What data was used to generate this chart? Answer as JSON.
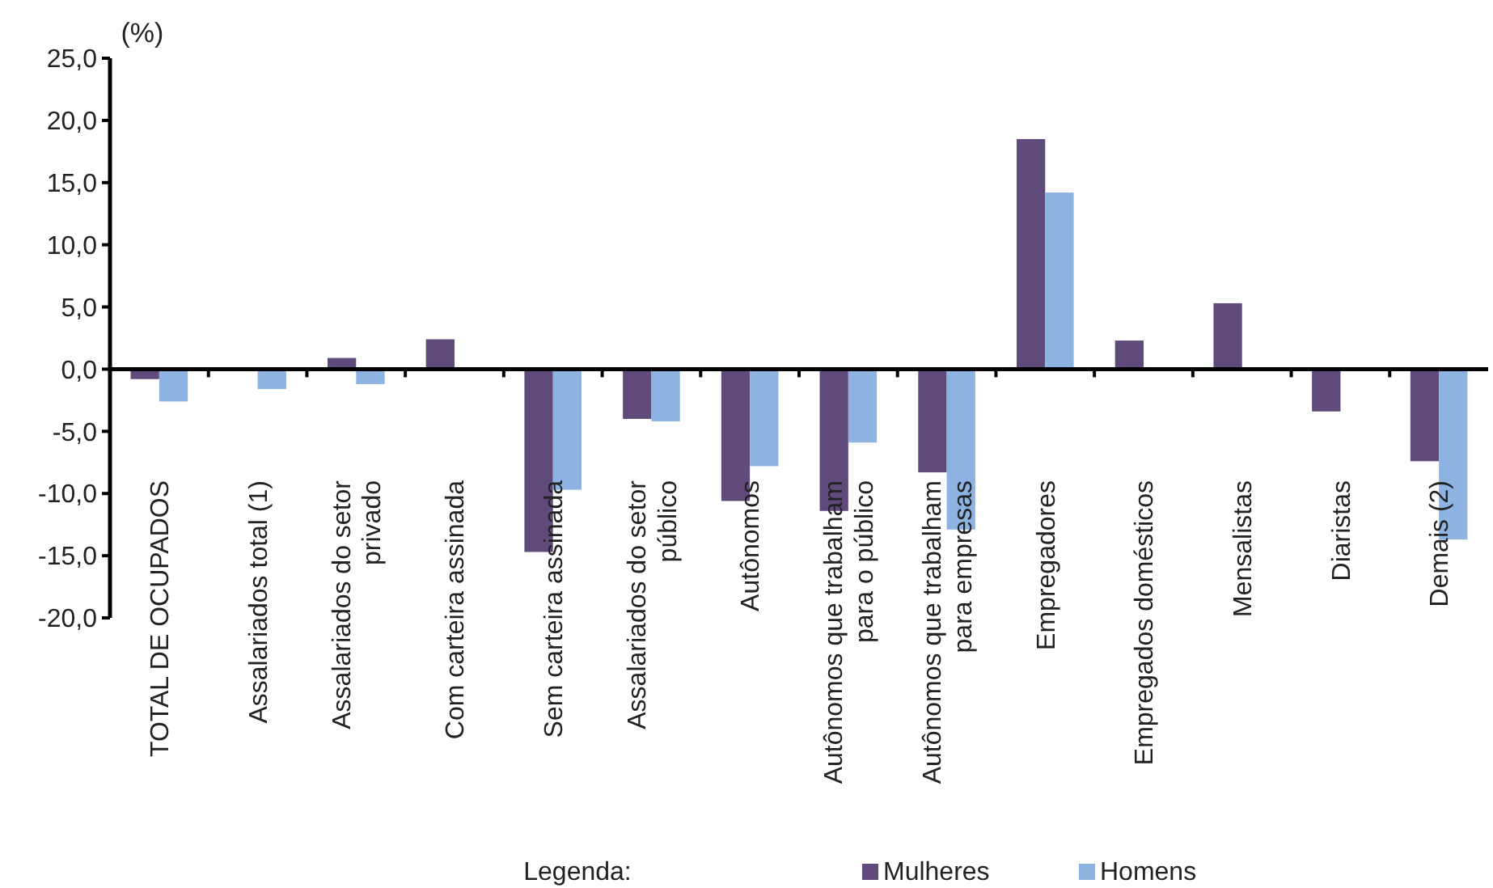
{
  "chart_data": {
    "type": "bar",
    "ylabel": "(%)",
    "legend_title": "Legenda:",
    "legend": "bottom",
    "categories": [
      "TOTAL DE OCUPADOS",
      "Assalariados total (1)",
      "Assalariados do setor privado",
      "Com carteira assinada",
      "Sem carteira assinada",
      "Assalariados do setor público",
      "Autônomos",
      "Autônomos que trabalham para o público",
      "Autônomos que trabalham para empresas",
      "Empregadores",
      "Empregados domésticos",
      "Mensalistas",
      "Diaristas",
      "Demais (2)"
    ],
    "series": [
      {
        "name": "Mulheres",
        "color": "#604a7b",
        "values": [
          -0.8,
          null,
          0.9,
          2.4,
          -14.7,
          -4.0,
          -10.6,
          -11.4,
          -8.3,
          18.5,
          2.3,
          5.3,
          -3.4,
          -7.4
        ]
      },
      {
        "name": "Homens",
        "color": "#8db3e2",
        "values": [
          -2.6,
          -1.6,
          -1.2,
          null,
          -9.7,
          -4.2,
          -7.8,
          -5.9,
          -12.9,
          14.2,
          null,
          null,
          null,
          -13.7
        ]
      }
    ],
    "ylim": [
      -20,
      25
    ],
    "yticks": [
      {
        "value": -20,
        "label": "-20,0"
      },
      {
        "value": -15,
        "label": "-15,0"
      },
      {
        "value": -10,
        "label": "-10,0"
      },
      {
        "value": -5,
        "label": "-5,0"
      },
      {
        "value": 0,
        "label": "0,0"
      },
      {
        "value": 5,
        "label": "5,0"
      },
      {
        "value": 10,
        "label": "10,0"
      },
      {
        "value": 15,
        "label": "15,0"
      },
      {
        "value": 20,
        "label": "20,0"
      },
      {
        "value": 25,
        "label": "25,0"
      }
    ]
  }
}
